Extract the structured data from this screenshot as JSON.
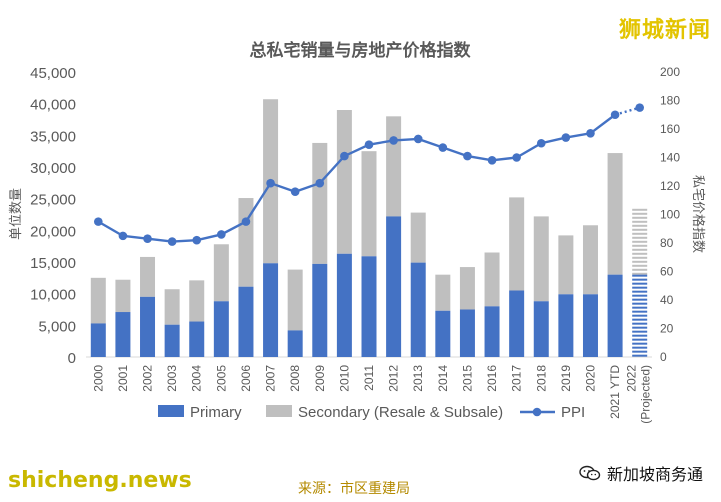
{
  "chart_data": {
    "type": "bar+line",
    "title": "总私宅销量与房地产价格指数",
    "ylabel_left": "单位数量",
    "ylabel_right": "私宅价格指数",
    "ylim_left": [
      0,
      45000
    ],
    "ylim_right": [
      0,
      200
    ],
    "left_ticks": [
      "0",
      "5,000",
      "10,000",
      "15,000",
      "20,000",
      "25,000",
      "30,000",
      "35,000",
      "40,000",
      "45,000"
    ],
    "right_ticks": [
      "0",
      "20",
      "40",
      "60",
      "80",
      "100",
      "120",
      "140",
      "160",
      "180",
      "200"
    ],
    "categories": [
      "2000",
      "2001",
      "2002",
      "2003",
      "2004",
      "2005",
      "2006",
      "2007",
      "2008",
      "2009",
      "2010",
      "2011",
      "2012",
      "2013",
      "2014",
      "2015",
      "2016",
      "2017",
      "2018",
      "2019",
      "2020",
      "2021 YTD",
      "2022 (Projected)"
    ],
    "series": [
      {
        "name": "Primary",
        "type": "bar",
        "color": "#4472c4",
        "values": [
          5300,
          7100,
          9500,
          5100,
          5600,
          8800,
          11100,
          14800,
          4200,
          14700,
          16300,
          15900,
          22200,
          14900,
          7300,
          7500,
          8000,
          10500,
          8800,
          9900,
          9900,
          13000,
          null
        ]
      },
      {
        "name": "Secondary (Resale & Subsale)",
        "type": "bar",
        "color": "#bfbfbf",
        "values": [
          7200,
          5100,
          6300,
          5600,
          6500,
          9000,
          14000,
          25900,
          9600,
          19100,
          22700,
          16600,
          15800,
          7900,
          5700,
          6700,
          8500,
          14700,
          13400,
          9300,
          10900,
          19200,
          null
        ]
      },
      {
        "name": "PPI",
        "type": "line",
        "color": "#4472c4",
        "values": [
          95,
          85,
          83,
          81,
          82,
          86,
          95,
          122,
          116,
          122,
          141,
          149,
          152,
          153,
          147,
          141,
          138,
          140,
          150,
          154,
          157,
          170,
          175
        ]
      }
    ],
    "projected": {
      "category": "2022 (Projected)",
      "total": 23400,
      "primary": 13000
    },
    "legend_position": "bottom",
    "grid": false
  },
  "brand_top": "狮城新闻",
  "brand_bottom_left": "shicheng.news",
  "source_note": "来源：市区重建局",
  "brand_bottom_right": "新加坡商务通",
  "colors": {
    "primary": "#4472c4",
    "secondary": "#bfbfbf",
    "ppi": "#4472c4",
    "text": "#595959"
  }
}
